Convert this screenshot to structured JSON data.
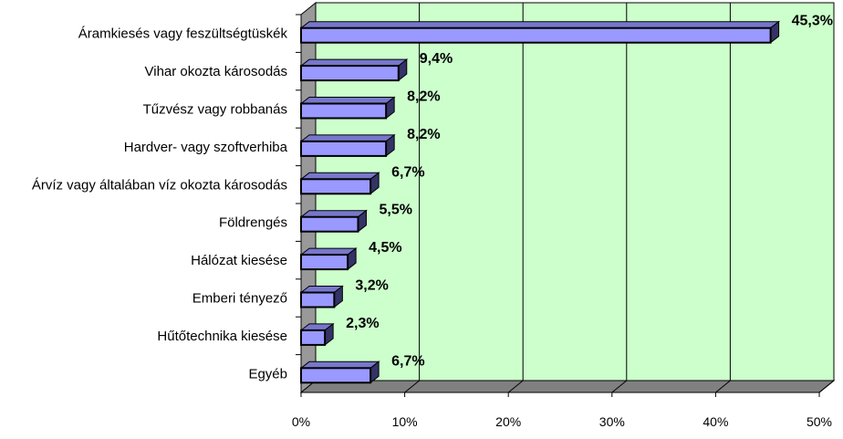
{
  "chart_data": {
    "type": "bar",
    "orientation": "horizontal",
    "style": "3d",
    "categories": [
      "Áramkiesés vagy feszültségtüskék",
      "Vihar okozta károsodás",
      "Tűzvész vagy robbanás",
      "Hardver- vagy szoftverhiba",
      "Árvíz vagy általában víz okozta károsodás",
      "Földrengés",
      "Hálózat kiesése",
      "Emberi tényező",
      "Hűtőtechnika kiesése",
      "Egyéb"
    ],
    "values": [
      45.3,
      9.4,
      8.2,
      8.2,
      6.7,
      5.5,
      4.5,
      3.2,
      2.3,
      6.7
    ],
    "value_labels": [
      "45,3%",
      "9,4%",
      "8,2%",
      "8,2%",
      "6,7%",
      "5,5%",
      "4,5%",
      "3,2%",
      "2,3%",
      "6,7%"
    ],
    "xlim": [
      0,
      50
    ],
    "x_ticks": [
      0,
      10,
      20,
      30,
      40,
      50
    ],
    "x_tick_labels": [
      "0%",
      "10%",
      "20%",
      "30%",
      "40%",
      "50%"
    ],
    "grid": true,
    "legend": "none",
    "colors": {
      "plot_background": "#ccffcc",
      "bar_front": "#9999ff",
      "bar_top": "#7777cc",
      "bar_side": "#333366",
      "floor": "#808080",
      "wall": "#999999",
      "gridline": "#000000"
    }
  }
}
